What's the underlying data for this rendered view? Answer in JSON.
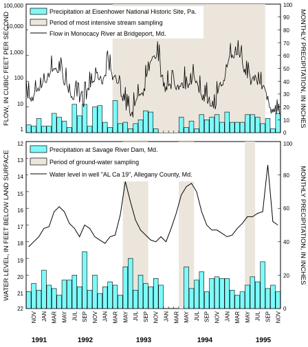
{
  "chart_data": [
    {
      "type": "bar",
      "y_scale_left": "log",
      "ylabel": "FLOW, IN CUBIC FEET PER SECOND",
      "ylabel_right": "MONTHLY PRECIPITATION, IN INCHES",
      "yticks_left": [
        "1",
        "10",
        "100",
        "1,000",
        "10,000",
        "100,000"
      ],
      "yticks_right": [
        "0",
        "10",
        "20",
        "30",
        "40",
        "50",
        "60",
        "70",
        "80",
        "90",
        "100"
      ],
      "ylim_left": [
        1,
        100000
      ],
      "ylim_right": [
        0,
        100
      ],
      "x_start_month": "1991-10",
      "legend": {
        "position": "top-left",
        "items": [
          "Precipitation at Eisenhower National Historic Site, Pa.",
          "Period of most intensive stream sampling",
          "Flow in Monocacy River at Bridgeport, Md."
        ]
      },
      "precipitation": [
        6,
        5,
        11,
        5,
        5,
        15,
        12,
        9,
        4,
        22,
        13,
        22,
        5,
        20,
        21,
        8,
        4,
        25,
        7,
        8,
        3,
        7,
        10,
        17,
        16,
        3,
        0,
        0,
        0,
        0,
        12,
        4,
        9,
        3,
        14,
        10,
        12,
        14,
        8,
        16,
        8,
        8,
        8,
        14,
        14,
        12,
        7,
        11,
        3,
        15
      ],
      "shaded_period": [
        "1993-03",
        "1995-08"
      ],
      "flow_monthly": [
        25,
        22,
        40,
        70,
        140,
        320,
        320,
        180,
        60,
        28,
        22,
        10,
        40,
        90,
        200,
        110,
        400,
        180,
        70,
        20,
        8,
        6,
        30,
        30,
        300,
        1200,
        900,
        60,
        70,
        80,
        70,
        80,
        70,
        150,
        50,
        20,
        22,
        7,
        70,
        120,
        900,
        1100,
        1200,
        250,
        90,
        170,
        80,
        50,
        10,
        6
      ]
    },
    {
      "type": "bar",
      "ylabel": "WATER LEVEL, IN FEET BELOW LAND SURFACE",
      "ylabel_right": "MONTHLY PRECIPITATION, IN INCHES",
      "yticks_left": [
        "12",
        "13",
        "14",
        "15",
        "16",
        "17",
        "18",
        "19",
        "20",
        "21",
        "22"
      ],
      "yticks_right": [
        "0",
        "20",
        "40",
        "60",
        "80",
        "100"
      ],
      "ylim_left": [
        22,
        12
      ],
      "ylim_right": [
        0,
        100
      ],
      "legend": {
        "position": "top-left",
        "items": [
          "Precipitation at Savage River Dam, Md.",
          "Period of ground-water sampling",
          "Water level in well \"AL Ca 19\", Allegany County, Md."
        ]
      },
      "precipitation": [
        10,
        15,
        11,
        23,
        14,
        12,
        8,
        17,
        17,
        20,
        13,
        34,
        11,
        20,
        9,
        13,
        16,
        14,
        8,
        25,
        30,
        11,
        20,
        15,
        13,
        18,
        14,
        0,
        0,
        0,
        0,
        25,
        12,
        17,
        22,
        10,
        18,
        19,
        18,
        18,
        11,
        8,
        10,
        14,
        19,
        16,
        28,
        12,
        14,
        10
      ],
      "shaded_periods": [
        [
          "1993-05",
          "1993-09"
        ],
        [
          "1994-04",
          "1994-06"
        ],
        [
          "1995-05",
          "1995-06"
        ]
      ],
      "water_level_monthly": [
        18.3,
        18.0,
        17.7,
        17.2,
        17.1,
        16.2,
        15.9,
        16.2,
        16.9,
        17.2,
        17.7,
        17.0,
        17.2,
        17.7,
        17.9,
        18.1,
        17.7,
        17.6,
        16.4,
        14.4,
        15.6,
        16.7,
        17.3,
        17.6,
        17.9,
        18.0,
        17.7,
        18.0,
        17.2,
        16.3,
        15.2,
        14.7,
        14.5,
        15.0,
        16.2,
        17.0,
        17.3,
        17.3,
        17.5,
        17.7,
        17.6,
        17.2,
        16.9,
        16.5,
        16.5,
        16.3,
        16.2,
        13.4,
        16.8,
        17.0
      ]
    }
  ],
  "x_axis": {
    "month_labels": [
      "NOV",
      "JAN",
      "MAR",
      "MAY",
      "JUL",
      "SEP"
    ],
    "years": [
      "1991",
      "1992",
      "1993",
      "1994",
      "1995"
    ]
  },
  "colors": {
    "bar_fill": "#7dfafa",
    "shade": "#ebe5dc",
    "line": "#000000"
  }
}
